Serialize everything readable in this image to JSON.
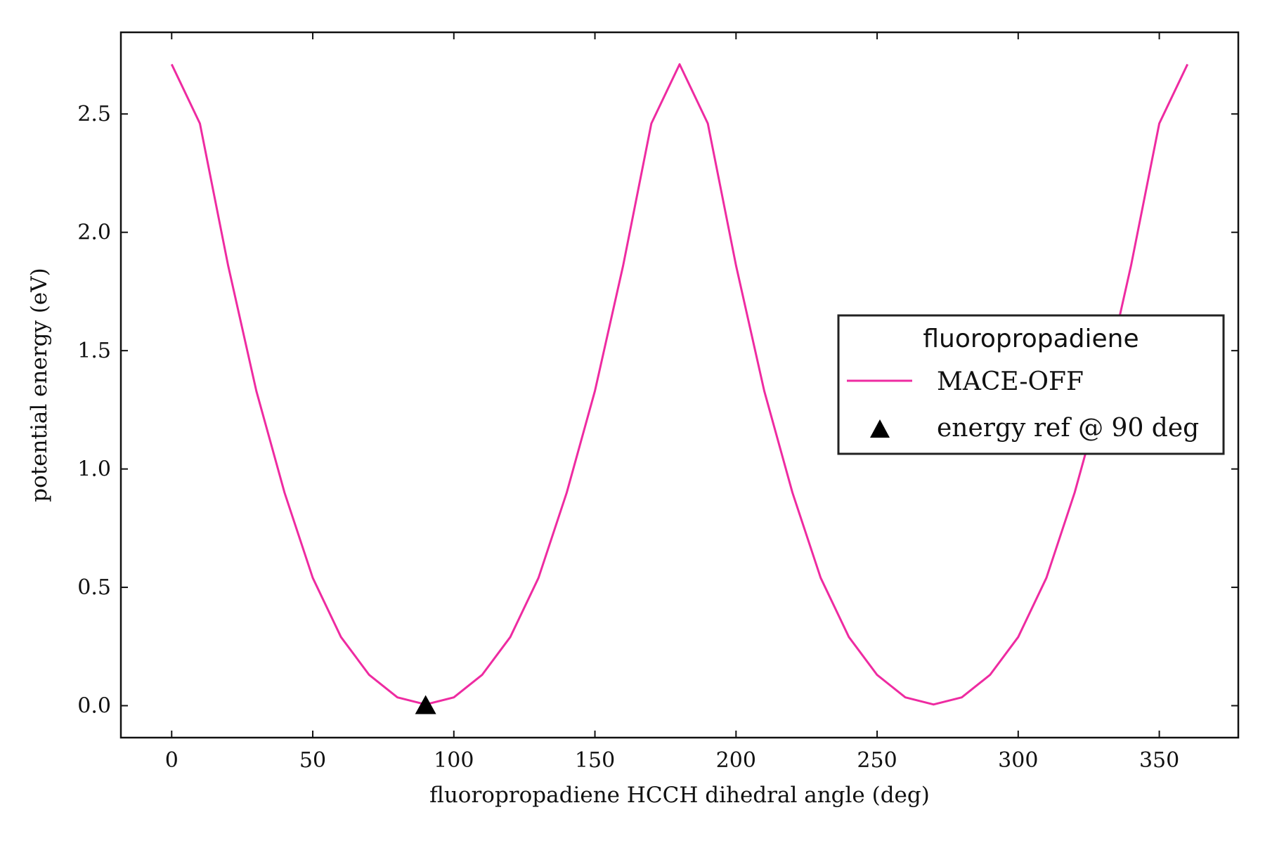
{
  "chart_data": {
    "type": "line",
    "title": "",
    "xlabel": "fluoropropadiene HCCH dihedral angle (deg)",
    "ylabel": "potential energy (eV)",
    "xlim": [
      -18,
      378
    ],
    "ylim": [
      -0.135,
      2.845
    ],
    "xticks": [
      0,
      50,
      100,
      150,
      200,
      250,
      300,
      350
    ],
    "xtick_labels": [
      "0",
      "50",
      "100",
      "150",
      "200",
      "250",
      "300",
      "350"
    ],
    "yticks": [
      0.0,
      0.5,
      1.0,
      1.5,
      2.0,
      2.5
    ],
    "ytick_labels": [
      "0.0",
      "0.5",
      "1.0",
      "1.5",
      "2.0",
      "2.5"
    ],
    "grid": false,
    "legend": {
      "title": "fluoropropadiene",
      "placement": "center-right"
    },
    "series": [
      {
        "name": "MACE-OFF",
        "type": "line",
        "color": "#ee2ba1",
        "x": [
          0,
          10,
          20,
          30,
          40,
          50,
          60,
          70,
          80,
          90,
          100,
          110,
          120,
          130,
          140,
          150,
          160,
          170,
          180,
          190,
          200,
          210,
          220,
          230,
          240,
          250,
          260,
          270,
          280,
          290,
          300,
          310,
          320,
          330,
          340,
          350,
          360
        ],
        "y": [
          2.71,
          2.46,
          1.86,
          1.33,
          0.9,
          0.54,
          0.29,
          0.13,
          0.035,
          0.005,
          0.035,
          0.13,
          0.29,
          0.54,
          0.9,
          1.33,
          1.86,
          2.46,
          2.71,
          2.46,
          1.86,
          1.33,
          0.9,
          0.54,
          0.29,
          0.13,
          0.035,
          0.005,
          0.035,
          0.13,
          0.29,
          0.54,
          0.9,
          1.33,
          1.86,
          2.46,
          2.71
        ]
      },
      {
        "name": "energy ref @ 90 deg",
        "type": "marker",
        "marker": "triangle",
        "color": "#000000",
        "x": [
          90
        ],
        "y": [
          0.0
        ]
      }
    ]
  }
}
